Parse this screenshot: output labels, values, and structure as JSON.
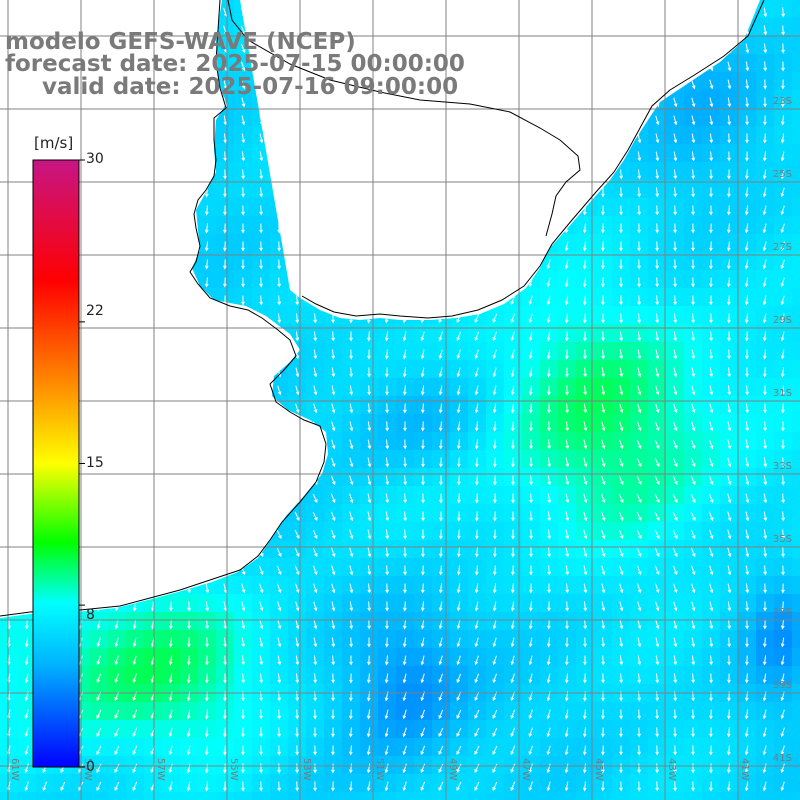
{
  "title": {
    "line1": "modelo GEFS-WAVE (NCEP)",
    "line2": "forecast date: 2025-07-15 00:00:00",
    "line3": "valid date: 2025-07-16 09:00:00"
  },
  "colorbar": {
    "unit": "[m/s]",
    "min": 0,
    "max": 30,
    "tick_labels": [
      "30",
      "22",
      "15",
      "8",
      "0"
    ],
    "tick_values": [
      30,
      22,
      15,
      8,
      0
    ],
    "colors": [
      "#0000ff",
      "#00b4ff",
      "#00ffff",
      "#00ff00",
      "#ffff00",
      "#ff8c00",
      "#ff0000",
      "#c71585"
    ]
  },
  "map": {
    "land_color": "#ffffff",
    "coast_color": "#000000",
    "grid_color": "#808080",
    "arrow_color": "#ffffff",
    "lon_labels": [
      "61W",
      "59W",
      "57W",
      "55W",
      "53W",
      "51W",
      "49W",
      "47W",
      "45W",
      "43W",
      "41W"
    ],
    "lat_labels": [
      "23S",
      "25S",
      "27S",
      "29S",
      "31S",
      "33S",
      "35S",
      "37S",
      "39S",
      "41S"
    ]
  }
}
